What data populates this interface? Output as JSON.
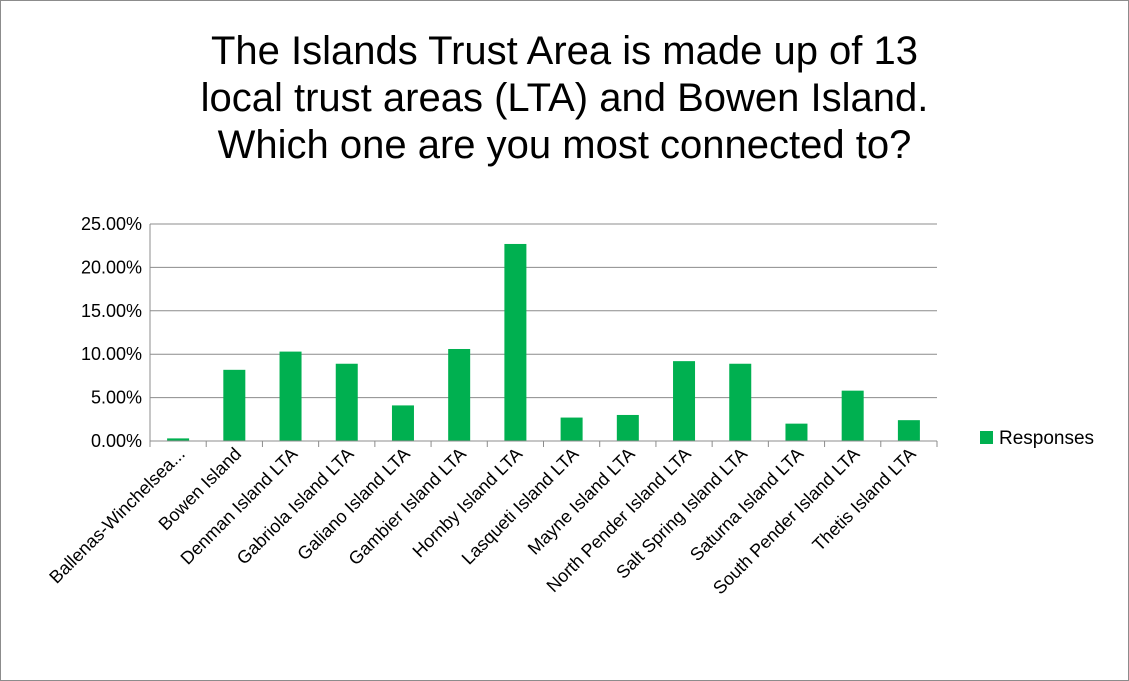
{
  "chart_data": {
    "type": "bar",
    "title_lines": [
      "The Islands Trust Area is made up of 13",
      "local trust areas (LTA) and Bowen Island.",
      "Which one are you most connected to?"
    ],
    "categories": [
      "Ballenas-Winchelsea...",
      "Bowen Island",
      "Denman Island LTA",
      "Gabriola Island LTA",
      "Galiano Island LTA",
      "Gambier Island LTA",
      "Hornby Island LTA",
      "Lasqueti Island LTA",
      "Mayne Island LTA",
      "North Pender Island LTA",
      "Salt Spring Island LTA",
      "Saturna Island LTA",
      "South Pender Island LTA",
      "Thetis Island LTA"
    ],
    "series": [
      {
        "name": "Responses",
        "color": "#00b050",
        "values": [
          0.3,
          8.2,
          10.3,
          8.9,
          4.1,
          10.6,
          22.7,
          2.7,
          3.0,
          9.2,
          8.9,
          2.0,
          5.8,
          2.4
        ]
      }
    ],
    "yticks": [
      "0.00%",
      "5.00%",
      "10.00%",
      "15.00%",
      "20.00%",
      "25.00%"
    ],
    "ylim": [
      0,
      25
    ],
    "grid": true,
    "legend": "right"
  }
}
